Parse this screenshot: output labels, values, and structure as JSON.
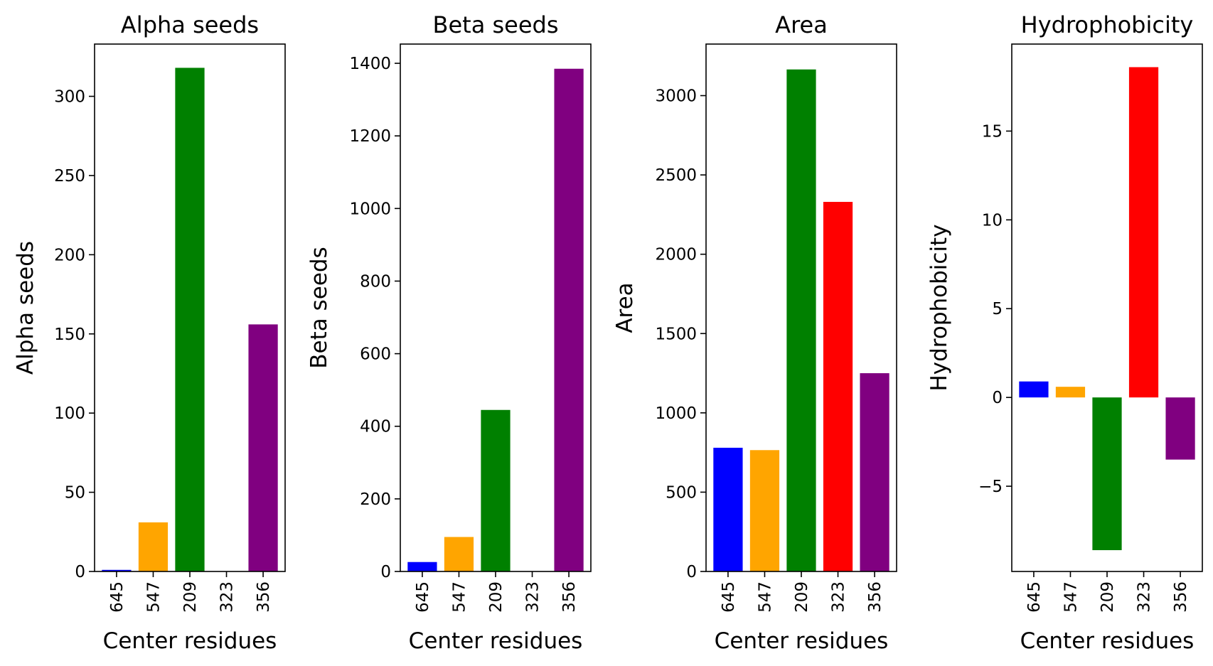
{
  "chart_data": [
    {
      "type": "bar",
      "title": "Alpha seeds",
      "xlabel": "Center residues",
      "ylabel": "Alpha seeds",
      "categories": [
        "645",
        "547",
        "209",
        "323",
        "356"
      ],
      "values": [
        1,
        31,
        318,
        0,
        156
      ],
      "colors": [
        "#0000ff",
        "#ffa500",
        "#008000",
        "#ff0000",
        "#800080"
      ],
      "ylim": [
        0,
        333
      ],
      "yticks": [
        0,
        50,
        100,
        150,
        200,
        250,
        300
      ],
      "ytick_labels": [
        "0",
        "50",
        "100",
        "150",
        "200",
        "250",
        "300"
      ],
      "grid": false
    },
    {
      "type": "bar",
      "title": "Beta seeds",
      "xlabel": "Center residues",
      "ylabel": "Beta seeds",
      "categories": [
        "645",
        "547",
        "209",
        "323",
        "356"
      ],
      "values": [
        26,
        95,
        445,
        0,
        1385
      ],
      "colors": [
        "#0000ff",
        "#ffa500",
        "#008000",
        "#ff0000",
        "#800080"
      ],
      "ylim": [
        0,
        1453
      ],
      "yticks": [
        0,
        200,
        400,
        600,
        800,
        1000,
        1200,
        1400
      ],
      "ytick_labels": [
        "0",
        "200",
        "400",
        "600",
        "800",
        "1000",
        "1200",
        "1400"
      ],
      "grid": false
    },
    {
      "type": "bar",
      "title": "Area",
      "xlabel": "Center residues",
      "ylabel": "Area",
      "categories": [
        "645",
        "547",
        "209",
        "323",
        "356"
      ],
      "values": [
        780,
        765,
        3165,
        2330,
        1250
      ],
      "colors": [
        "#0000ff",
        "#ffa500",
        "#008000",
        "#ff0000",
        "#800080"
      ],
      "ylim": [
        0,
        3325
      ],
      "yticks": [
        0,
        500,
        1000,
        1500,
        2000,
        2500,
        3000
      ],
      "ytick_labels": [
        "0",
        "500",
        "1000",
        "1500",
        "2000",
        "2500",
        "3000"
      ],
      "grid": false
    },
    {
      "type": "bar",
      "title": "Hydrophobicity",
      "xlabel": "Center residues",
      "ylabel": "Hydrophobicity",
      "categories": [
        "645",
        "547",
        "209",
        "323",
        "356"
      ],
      "values": [
        0.9,
        0.6,
        -8.6,
        18.6,
        -3.5
      ],
      "colors": [
        "#0000ff",
        "#ffa500",
        "#008000",
        "#ff0000",
        "#800080"
      ],
      "ylim": [
        -9.8,
        19.9
      ],
      "yticks": [
        -5,
        0,
        5,
        10,
        15
      ],
      "ytick_labels": [
        "−5",
        "0",
        "5",
        "10",
        "15"
      ],
      "grid": false
    }
  ]
}
